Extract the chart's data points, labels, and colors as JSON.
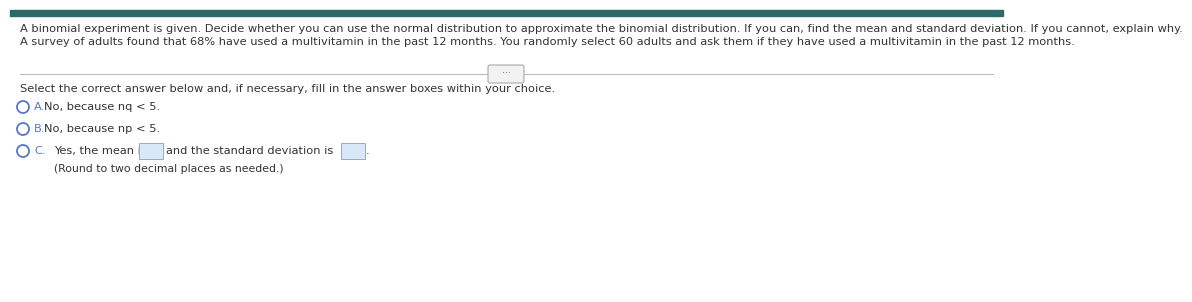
{
  "line1": "A binomial experiment is given. Decide whether you can use the normal distribution to approximate the binomial distribution. If you can, find the mean and standard deviation. If you cannot, explain why.",
  "line2": "A survey of adults found that 68% have used a multivitamin in the past 12 months. You randomly select 60 adults and ask them if they have used a multivitamin in the past 12 months.",
  "instruction": "Select the correct answer below and, if necessary, fill in the answer boxes within your choice.",
  "opt_a_label": "A.",
  "opt_a_text": "  No, because nq < 5.",
  "opt_b_label": "B.",
  "opt_b_text": "  No, because np < 5.",
  "opt_c_label": "C.",
  "opt_c_text1": "  Yes, the mean is",
  "opt_c_text2": "and the standard deviation is",
  "opt_c_text3": ".",
  "opt_c_note": "(Round to two decimal places as needed.)",
  "bg": "#ffffff",
  "top_border": "#2d6b6b",
  "text_dark": "#333333",
  "text_blue": "#2255aa",
  "radio_blue": "#5577cc",
  "line_gray": "#bbbbbb",
  "btn_bg": "#f2f2f2",
  "btn_border": "#aaaaaa",
  "box_bg": "#d8e8f8",
  "box_border": "#99aabb",
  "fs": 8.2,
  "fs_small": 7.8
}
